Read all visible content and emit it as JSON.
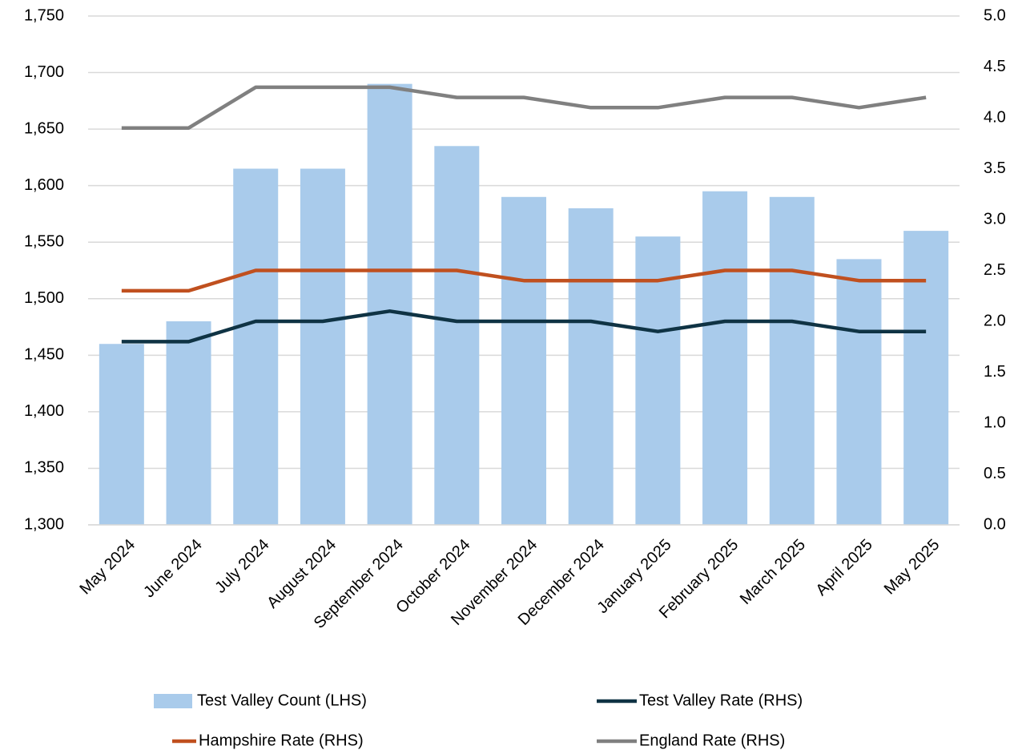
{
  "chart_data": {
    "type": "bar_line",
    "categories": [
      "May 2024",
      "June 2024",
      "July 2024",
      "August 2024",
      "September 2024",
      "October 2024",
      "November 2024",
      "December 2024",
      "January 2025",
      "February 2025",
      "March 2025",
      "April 2025",
      "May 2025"
    ],
    "series": [
      {
        "name": "Test Valley Count (LHS)",
        "type": "bar",
        "color": "#a9cbeb",
        "axis": "y",
        "values": [
          1460,
          1480,
          1615,
          1615,
          1690,
          1635,
          1590,
          1580,
          1555,
          1595,
          1590,
          1535,
          1560
        ]
      },
      {
        "name": "Test Valley Rate (RHS)",
        "type": "line",
        "color": "#0f3344",
        "axis": "y2",
        "values": [
          1.8,
          1.8,
          2.0,
          2.0,
          2.1,
          2.0,
          2.0,
          2.0,
          1.9,
          2.0,
          2.0,
          1.9,
          1.9
        ]
      },
      {
        "name": "Hampshire Rate (RHS)",
        "type": "line",
        "color": "#c0501f",
        "axis": "y2",
        "values": [
          2.3,
          2.3,
          2.5,
          2.5,
          2.5,
          2.5,
          2.4,
          2.4,
          2.4,
          2.5,
          2.5,
          2.4,
          2.4
        ]
      },
      {
        "name": "England Rate (RHS)",
        "type": "line",
        "color": "#808080",
        "axis": "y2",
        "values": [
          3.9,
          3.9,
          4.3,
          4.3,
          4.3,
          4.2,
          4.2,
          4.1,
          4.1,
          4.2,
          4.2,
          4.1,
          4.2
        ]
      }
    ],
    "ylim": [
      1300,
      1750
    ],
    "yticks": [
      {
        "value": 1300,
        "label": "1,300"
      },
      {
        "value": 1350,
        "label": "1,350"
      },
      {
        "value": 1400,
        "label": "1,400"
      },
      {
        "value": 1450,
        "label": "1,450"
      },
      {
        "value": 1500,
        "label": "1,500"
      },
      {
        "value": 1550,
        "label": "1,550"
      },
      {
        "value": 1600,
        "label": "1,600"
      },
      {
        "value": 1650,
        "label": "1,650"
      },
      {
        "value": 1700,
        "label": "1,700"
      },
      {
        "value": 1750,
        "label": "1,750"
      }
    ],
    "y2lim": [
      0,
      5
    ],
    "y2ticks": [
      {
        "value": 0,
        "label": "0.0"
      },
      {
        "value": 0.5,
        "label": "0.5"
      },
      {
        "value": 1,
        "label": "1.0"
      },
      {
        "value": 1.5,
        "label": "1.5"
      },
      {
        "value": 2,
        "label": "2.0"
      },
      {
        "value": 2.5,
        "label": "2.5"
      },
      {
        "value": 3,
        "label": "3.0"
      },
      {
        "value": 3.5,
        "label": "3.5"
      },
      {
        "value": 4,
        "label": "4.0"
      },
      {
        "value": 4.5,
        "label": "4.5"
      },
      {
        "value": 5,
        "label": "5.0"
      }
    ],
    "grid": true,
    "legend": "bottom"
  }
}
